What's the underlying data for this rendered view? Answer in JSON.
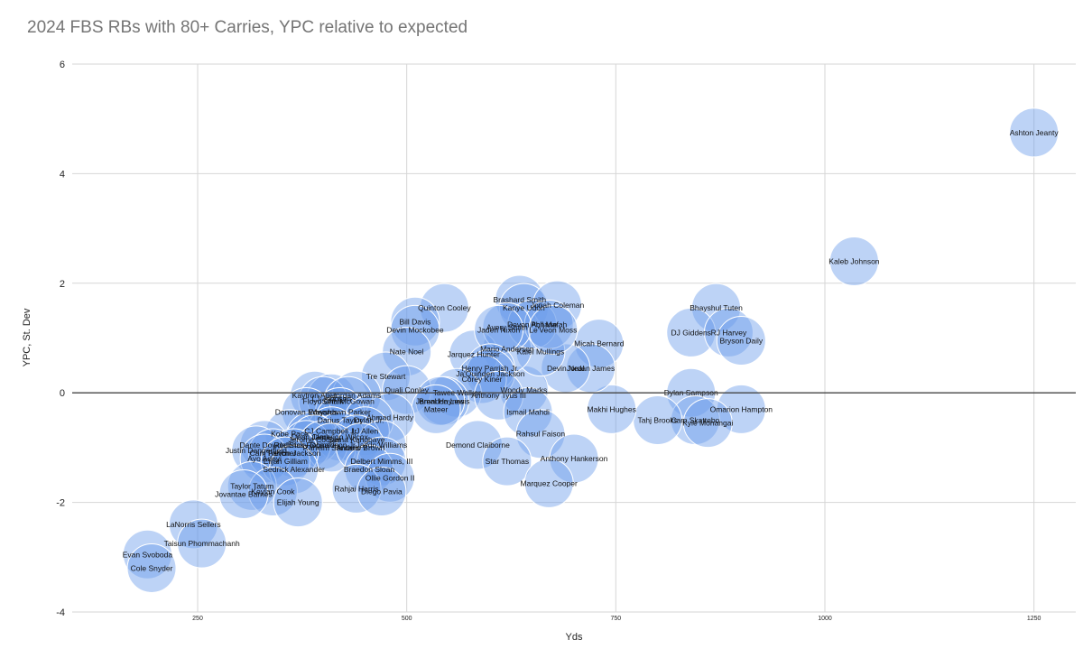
{
  "chart_data": {
    "type": "scatter",
    "title": "2024 FBS RBs with 80+ Carries, YPC relative to expected",
    "xlabel": "Yds",
    "ylabel": "YPC, St. Dev",
    "xlim": [
      100,
      1300
    ],
    "ylim": [
      -4,
      6
    ],
    "x_ticks": [
      250,
      500,
      750,
      1000,
      1250
    ],
    "y_ticks": [
      6,
      4,
      2,
      0,
      -2,
      -4
    ],
    "grid": true,
    "legend": "none",
    "color": "#6d9eeb",
    "points": [
      {
        "name": "Ashton Jeanty",
        "x": 1250,
        "y": 4.75
      },
      {
        "name": "Kaleb Johnson",
        "x": 1035,
        "y": 2.4
      },
      {
        "name": "Bhayshul Tuten",
        "x": 870,
        "y": 1.55
      },
      {
        "name": "DJ Giddens",
        "x": 840,
        "y": 1.1
      },
      {
        "name": "RJ Harvey",
        "x": 885,
        "y": 1.1
      },
      {
        "name": "Bryson Daily",
        "x": 900,
        "y": 0.95
      },
      {
        "name": "Dylan Sampson",
        "x": 840,
        "y": 0.0
      },
      {
        "name": "Omarion Hampton",
        "x": 900,
        "y": -0.3
      },
      {
        "name": "Cam Skattebo",
        "x": 845,
        "y": -0.5
      },
      {
        "name": "Kyle Monangai",
        "x": 860,
        "y": -0.55
      },
      {
        "name": "Tahj Brooks",
        "x": 800,
        "y": -0.5
      },
      {
        "name": "Makhi Hughes",
        "x": 745,
        "y": -0.3
      },
      {
        "name": "Micah Bernard",
        "x": 730,
        "y": 0.9
      },
      {
        "name": "Jordan James",
        "x": 720,
        "y": 0.45
      },
      {
        "name": "Devin Neal",
        "x": 690,
        "y": 0.45
      },
      {
        "name": "Woody Marks",
        "x": 640,
        "y": 0.05
      },
      {
        "name": "Kalel Mullings",
        "x": 660,
        "y": 0.75
      },
      {
        "name": "Mario Anderson",
        "x": 620,
        "y": 0.8
      },
      {
        "name": "Jarquez Hunter",
        "x": 580,
        "y": 0.7
      },
      {
        "name": "Brashard Smith",
        "x": 635,
        "y": 1.7
      },
      {
        "name": "Kanye Udoh",
        "x": 640,
        "y": 1.55
      },
      {
        "name": "Jonah Coleman",
        "x": 680,
        "y": 1.6
      },
      {
        "name": "Devon Achane",
        "x": 650,
        "y": 1.25
      },
      {
        "name": "Phil Mafah",
        "x": 670,
        "y": 1.25
      },
      {
        "name": "Avery Smith",
        "x": 620,
        "y": 1.2
      },
      {
        "name": "Jaden Nixon",
        "x": 610,
        "y": 1.15
      },
      {
        "name": "Le'Veon Moss",
        "x": 675,
        "y": 1.15
      },
      {
        "name": "Henry Parrish Jr.",
        "x": 600,
        "y": 0.45
      },
      {
        "name": "Ja'Quinden Jackson",
        "x": 600,
        "y": 0.35
      },
      {
        "name": "Corey Kiner",
        "x": 590,
        "y": 0.25
      },
      {
        "name": "Tawee Walker",
        "x": 560,
        "y": 0.0
      },
      {
        "name": "Anthony Tyus III",
        "x": 610,
        "y": -0.05
      },
      {
        "name": "Brendon Lewis",
        "x": 545,
        "y": -0.15
      },
      {
        "name": "Ismail Mahdi",
        "x": 645,
        "y": -0.35
      },
      {
        "name": "Rahsul Faison",
        "x": 660,
        "y": -0.75
      },
      {
        "name": "Demond Claiborne",
        "x": 585,
        "y": -0.95
      },
      {
        "name": "Star Thomas",
        "x": 620,
        "y": -1.25
      },
      {
        "name": "Anthony Hankerson",
        "x": 700,
        "y": -1.2
      },
      {
        "name": "Marquez Cooper",
        "x": 670,
        "y": -1.65
      },
      {
        "name": "Quinton Cooley",
        "x": 545,
        "y": 1.55
      },
      {
        "name": "Bill Davis",
        "x": 510,
        "y": 1.3
      },
      {
        "name": "Devin Mockobee",
        "x": 510,
        "y": 1.15
      },
      {
        "name": "Nate Noel",
        "x": 500,
        "y": 0.75
      },
      {
        "name": "Tre Stewart",
        "x": 475,
        "y": 0.3
      },
      {
        "name": "Quali Conley",
        "x": 500,
        "y": 0.05
      },
      {
        "name": "Jamal Haynes",
        "x": 540,
        "y": -0.15
      },
      {
        "name": "Mateer",
        "x": 535,
        "y": -0.3
      },
      {
        "name": "Kaytron Allen",
        "x": 390,
        "y": -0.05
      },
      {
        "name": "LJ Johnson",
        "x": 410,
        "y": -0.1
      },
      {
        "name": "Jordan Adams",
        "x": 440,
        "y": -0.05
      },
      {
        "name": "Floyd Chalk",
        "x": 400,
        "y": -0.15
      },
      {
        "name": "Seth McGowan",
        "x": 430,
        "y": -0.15
      },
      {
        "name": "Wayshawn Parker",
        "x": 420,
        "y": -0.35
      },
      {
        "name": "Donovan Edwards",
        "x": 380,
        "y": -0.35
      },
      {
        "name": "Ahmad Hardy",
        "x": 480,
        "y": -0.45
      },
      {
        "name": "Darius Taylor",
        "x": 420,
        "y": -0.5
      },
      {
        "name": "Dylan Jr.",
        "x": 455,
        "y": -0.5
      },
      {
        "name": "CJ Campbell Jr.",
        "x": 410,
        "y": -0.7
      },
      {
        "name": "LJ Allen",
        "x": 450,
        "y": -0.7
      },
      {
        "name": "Kobe Pace",
        "x": 360,
        "y": -0.75
      },
      {
        "name": "Dean Clark",
        "x": 385,
        "y": -0.8
      },
      {
        "name": "Jamarion Wilcox",
        "x": 420,
        "y": -0.8
      },
      {
        "name": "Jerome Cooper",
        "x": 390,
        "y": -0.85
      },
      {
        "name": "Suma Kangbaye",
        "x": 440,
        "y": -0.85
      },
      {
        "name": "Dante Dowdell",
        "x": 330,
        "y": -0.95
      },
      {
        "name": "Roderick Robinson",
        "x": 380,
        "y": -0.95
      },
      {
        "name": "Stacy Donaldson Jr.",
        "x": 400,
        "y": -0.95
      },
      {
        "name": "Jaydn Williams",
        "x": 470,
        "y": -0.95
      },
      {
        "name": "Raheim Sanders",
        "x": 410,
        "y": -1.0
      },
      {
        "name": "Antario Brown",
        "x": 445,
        "y": -1.0
      },
      {
        "name": "Justin Dangerfield",
        "x": 320,
        "y": -1.05
      },
      {
        "name": "Cam Fancher",
        "x": 340,
        "y": -1.1
      },
      {
        "name": "Trevon Jackson",
        "x": 365,
        "y": -1.1
      },
      {
        "name": "Ayo Adeyi",
        "x": 330,
        "y": -1.2
      },
      {
        "name": "Elijah Gilliam",
        "x": 355,
        "y": -1.25
      },
      {
        "name": "Delbert Mimms, III",
        "x": 470,
        "y": -1.25
      },
      {
        "name": "Braedon Sloan",
        "x": 455,
        "y": -1.4
      },
      {
        "name": "Sedrick Alexander",
        "x": 365,
        "y": -1.4
      },
      {
        "name": "Ollie Gordon II",
        "x": 480,
        "y": -1.55
      },
      {
        "name": "Rahjai Harris",
        "x": 440,
        "y": -1.75
      },
      {
        "name": "Diego Pavia",
        "x": 470,
        "y": -1.8
      },
      {
        "name": "Taylor Tatum",
        "x": 315,
        "y": -1.7
      },
      {
        "name": "Keylan Cook",
        "x": 340,
        "y": -1.8
      },
      {
        "name": "Jovantae Barnes",
        "x": 305,
        "y": -1.85
      },
      {
        "name": "Elijah Young",
        "x": 370,
        "y": -2.0
      },
      {
        "name": "LaNorris Sellers",
        "x": 245,
        "y": -2.4
      },
      {
        "name": "Taisun Phommachanh",
        "x": 255,
        "y": -2.75
      },
      {
        "name": "Evan Svoboda",
        "x": 190,
        "y": -2.95
      },
      {
        "name": "Cole Snyder",
        "x": 195,
        "y": -3.2
      }
    ]
  }
}
